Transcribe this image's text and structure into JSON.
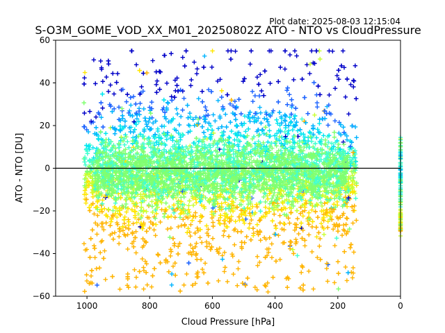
{
  "chart_data": {
    "type": "scatter",
    "title": "S-O3M_GOME_VOD_XX_M01_20250802Z ATO - NTO vs CloudPressure",
    "plot_date": "Plot date: 2025-08-03 12:15:04",
    "xlabel": "Cloud Pressure [hPa]",
    "ylabel": "ATO - NTO [DU]",
    "xlim": [
      1100,
      0
    ],
    "ylim": [
      -60,
      60
    ],
    "x_ticks": [
      1000,
      800,
      600,
      400,
      200,
      0
    ],
    "y_ticks": [
      -60,
      -40,
      -20,
      0,
      20,
      40,
      60
    ],
    "x_inverted": true,
    "marker": "+",
    "reference_line_y": 0,
    "grid": false,
    "legend": "none",
    "colormap": [
      "#0000c8",
      "#1e64ff",
      "#00b4ff",
      "#00e6f0",
      "#40ffd0",
      "#80ff70",
      "#c8ff30",
      "#ffe600",
      "#ffb400"
    ],
    "point_cloud": {
      "x_range": [
        1000,
        150
      ],
      "y_core_range": [
        -20,
        20
      ],
      "y_extent": [
        -60,
        55
      ],
      "description_of_color_trend": "core points green/cyan; outer points blue at top, yellow/orange at bottom"
    },
    "clear_sky_column": {
      "x": 0,
      "y_range": [
        -32,
        15
      ]
    }
  }
}
